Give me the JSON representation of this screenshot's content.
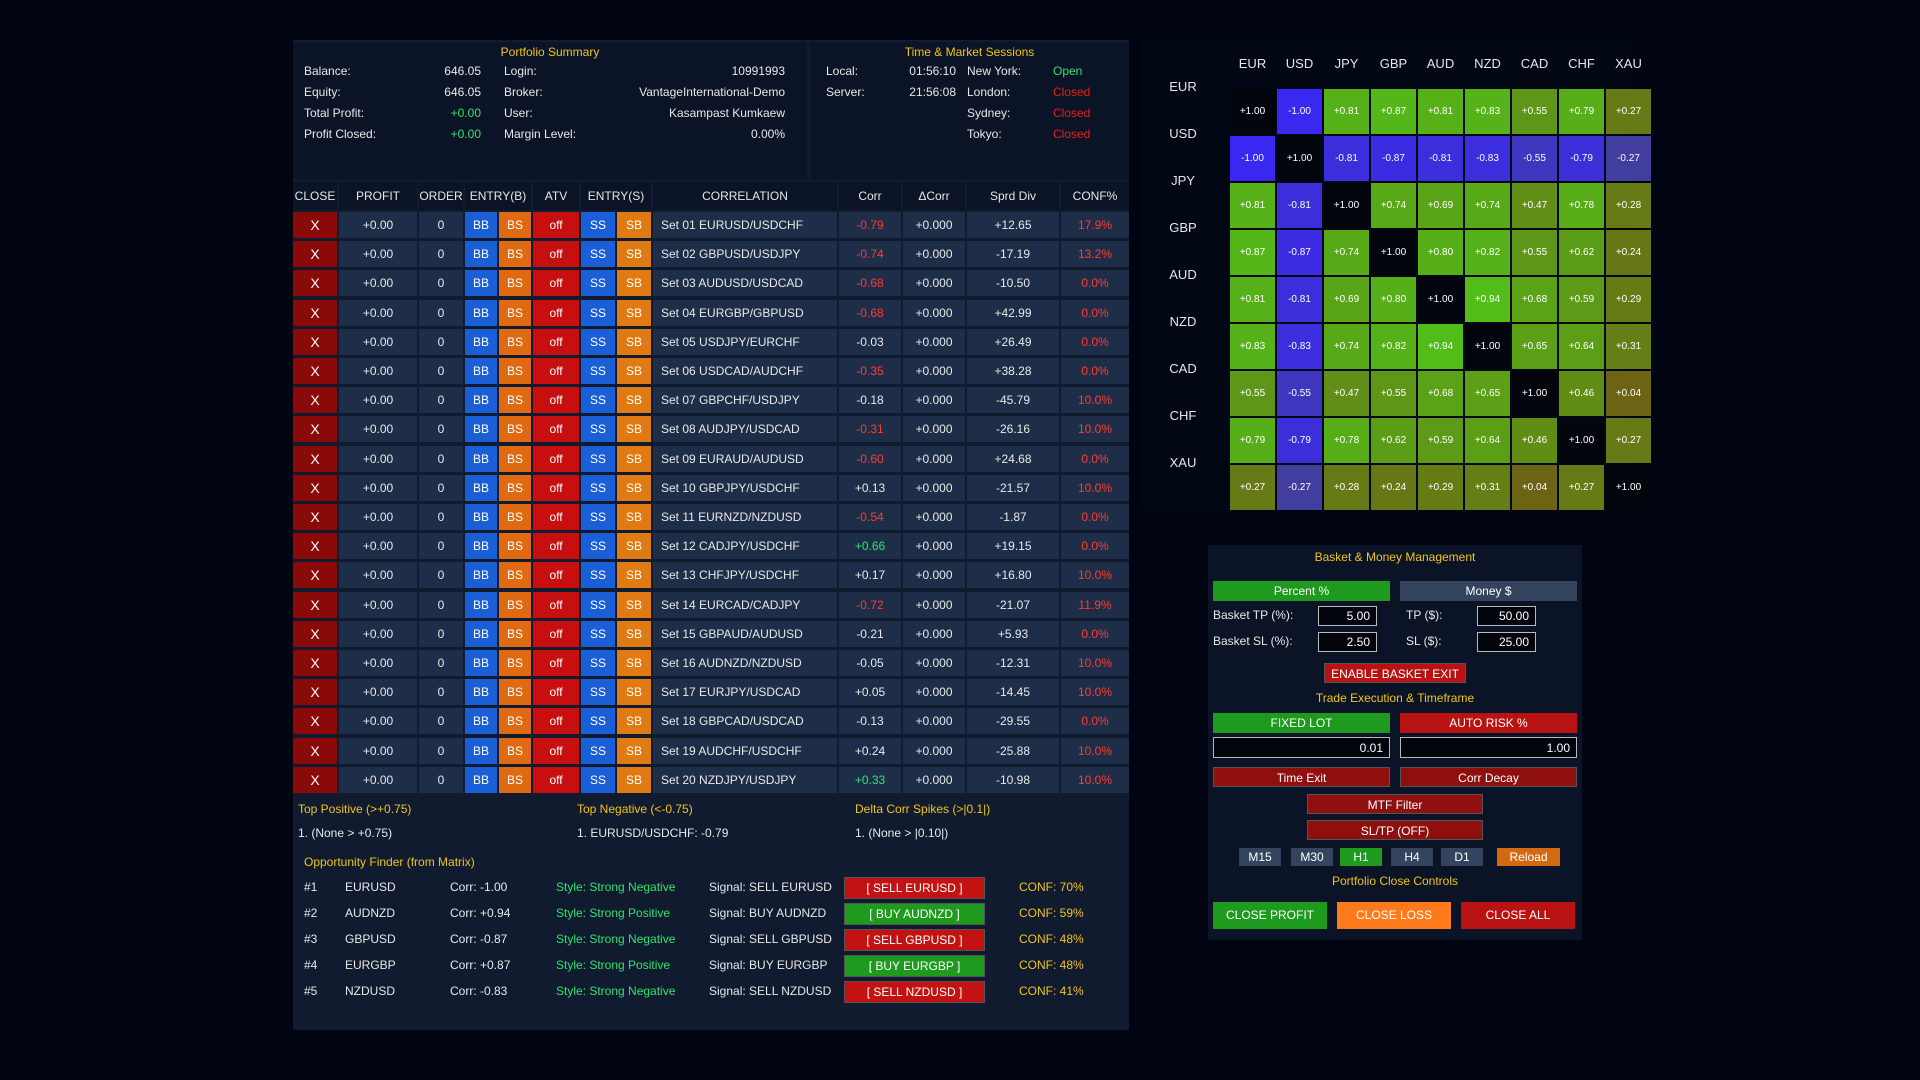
{
  "portfolio": {
    "title": "Portfolio Summary",
    "balance_label": "Balance:",
    "balance": "646.05",
    "equity_label": "Equity:",
    "equity": "646.05",
    "total_profit_label": "Total Profit:",
    "total_profit": "+0.00",
    "profit_closed_label": "Profit Closed:",
    "profit_closed": "+0.00",
    "login_label": "Login:",
    "login": "10991993",
    "broker_label": "Broker:",
    "broker": "VantageInternational-Demo",
    "user_label": "User:",
    "user": "Kasampast Kumkaew",
    "margin_label": "Margin Level:",
    "margin": "0.00%"
  },
  "sessions": {
    "title": "Time & Market Sessions",
    "local_label": "Local:",
    "local": "01:56:10",
    "server_label": "Server:",
    "server": "21:56:08",
    "markets": [
      {
        "name": "New York:",
        "status": "Open",
        "color": "#2ee36b"
      },
      {
        "name": "London:",
        "status": "Closed",
        "color": "#e2201a"
      },
      {
        "name": "Sydney:",
        "status": "Closed",
        "color": "#e2201a"
      },
      {
        "name": "Tokyo:",
        "status": "Closed",
        "color": "#e2201a"
      }
    ]
  },
  "table": {
    "headers": [
      "CLOSE",
      "PROFIT",
      "ORDER",
      "ENTRY(B)",
      "ATV",
      "ENTRY(S)",
      "CORRELATION",
      "Corr",
      "ΔCorr",
      "Sprd Div",
      "CONF%"
    ],
    "buttons": {
      "close": "X",
      "bb": "BB",
      "bs": "BS",
      "off": "off",
      "ss": "SS",
      "sb": "SB"
    },
    "rows": [
      {
        "profit": "+0.00",
        "order": "0",
        "name": "Set 01 EURUSD/USDCHF",
        "corr": "-0.79",
        "corr_color": "#ff3b30",
        "dcorr": "+0.000",
        "sprd": "+12.65",
        "conf": "17.9%"
      },
      {
        "profit": "+0.00",
        "order": "0",
        "name": "Set 02 GBPUSD/USDJPY",
        "corr": "-0.74",
        "corr_color": "#ff3b30",
        "dcorr": "+0.000",
        "sprd": "-17.19",
        "conf": "13.2%"
      },
      {
        "profit": "+0.00",
        "order": "0",
        "name": "Set 03 AUDUSD/USDCAD",
        "corr": "-0.68",
        "corr_color": "#ff3b30",
        "dcorr": "+0.000",
        "sprd": "-10.50",
        "conf": "0.0%"
      },
      {
        "profit": "+0.00",
        "order": "0",
        "name": "Set 04 EURGBP/GBPUSD",
        "corr": "-0.68",
        "corr_color": "#ff3b30",
        "dcorr": "+0.000",
        "sprd": "+42.99",
        "conf": "0.0%"
      },
      {
        "profit": "+0.00",
        "order": "0",
        "name": "Set 05 USDJPY/EURCHF",
        "corr": "-0.03",
        "corr_color": "#e8e8e8",
        "dcorr": "+0.000",
        "sprd": "+26.49",
        "conf": "0.0%"
      },
      {
        "profit": "+0.00",
        "order": "0",
        "name": "Set 06 USDCAD/AUDCHF",
        "corr": "-0.35",
        "corr_color": "#ff3b30",
        "dcorr": "+0.000",
        "sprd": "+38.28",
        "conf": "0.0%"
      },
      {
        "profit": "+0.00",
        "order": "0",
        "name": "Set 07 GBPCHF/USDJPY",
        "corr": "-0.18",
        "corr_color": "#e8e8e8",
        "dcorr": "+0.000",
        "sprd": "-45.79",
        "conf": "10.0%"
      },
      {
        "profit": "+0.00",
        "order": "0",
        "name": "Set 08 AUDJPY/USDCAD",
        "corr": "-0.31",
        "corr_color": "#ff3b30",
        "dcorr": "+0.000",
        "sprd": "-26.16",
        "conf": "10.0%"
      },
      {
        "profit": "+0.00",
        "order": "0",
        "name": "Set 09 EURAUD/AUDUSD",
        "corr": "-0.60",
        "corr_color": "#ff3b30",
        "dcorr": "+0.000",
        "sprd": "+24.68",
        "conf": "0.0%"
      },
      {
        "profit": "+0.00",
        "order": "0",
        "name": "Set 10 GBPJPY/USDCHF",
        "corr": "+0.13",
        "corr_color": "#e8e8e8",
        "dcorr": "+0.000",
        "sprd": "-21.57",
        "conf": "10.0%"
      },
      {
        "profit": "+0.00",
        "order": "0",
        "name": "Set 11 EURNZD/NZDUSD",
        "corr": "-0.54",
        "corr_color": "#ff3b30",
        "dcorr": "+0.000",
        "sprd": "-1.87",
        "conf": "0.0%"
      },
      {
        "profit": "+0.00",
        "order": "0",
        "name": "Set 12 CADJPY/USDCHF",
        "corr": "+0.66",
        "corr_color": "#2ee36b",
        "dcorr": "+0.000",
        "sprd": "+19.15",
        "conf": "0.0%"
      },
      {
        "profit": "+0.00",
        "order": "0",
        "name": "Set 13 CHFJPY/USDCHF",
        "corr": "+0.17",
        "corr_color": "#e8e8e8",
        "dcorr": "+0.000",
        "sprd": "+16.80",
        "conf": "10.0%"
      },
      {
        "profit": "+0.00",
        "order": "0",
        "name": "Set 14 EURCAD/CADJPY",
        "corr": "-0.72",
        "corr_color": "#ff3b30",
        "dcorr": "+0.000",
        "sprd": "-21.07",
        "conf": "11.9%"
      },
      {
        "profit": "+0.00",
        "order": "0",
        "name": "Set 15 GBPAUD/AUDUSD",
        "corr": "-0.21",
        "corr_color": "#e8e8e8",
        "dcorr": "+0.000",
        "sprd": "+5.93",
        "conf": "0.0%"
      },
      {
        "profit": "+0.00",
        "order": "0",
        "name": "Set 16 AUDNZD/NZDUSD",
        "corr": "-0.05",
        "corr_color": "#e8e8e8",
        "dcorr": "+0.000",
        "sprd": "-12.31",
        "conf": "10.0%"
      },
      {
        "profit": "+0.00",
        "order": "0",
        "name": "Set 17 EURJPY/USDCAD",
        "corr": "+0.05",
        "corr_color": "#e8e8e8",
        "dcorr": "+0.000",
        "sprd": "-14.45",
        "conf": "10.0%"
      },
      {
        "profit": "+0.00",
        "order": "0",
        "name": "Set 18 GBPCAD/USDCAD",
        "corr": "-0.13",
        "corr_color": "#e8e8e8",
        "dcorr": "+0.000",
        "sprd": "-29.55",
        "conf": "0.0%"
      },
      {
        "profit": "+0.00",
        "order": "0",
        "name": "Set 19 AUDCHF/USDCHF",
        "corr": "+0.24",
        "corr_color": "#e8e8e8",
        "dcorr": "+0.000",
        "sprd": "-25.88",
        "conf": "10.0%"
      },
      {
        "profit": "+0.00",
        "order": "0",
        "name": "Set 20 NZDJPY/USDJPY",
        "corr": "+0.33",
        "corr_color": "#2ee36b",
        "dcorr": "+0.000",
        "sprd": "-10.98",
        "conf": "10.0%"
      }
    ]
  },
  "spikes": {
    "top_positive_title": "Top Positive (>+0.75)",
    "top_positive": "1. (None > +0.75)",
    "top_negative_title": "Top Negative (<-0.75)",
    "top_negative": "1. EURUSD/USDCHF: -0.79",
    "delta_title": "Delta Corr Spikes (>|0.1|)",
    "delta": "1. (None > |0.10|)"
  },
  "opportunity": {
    "title": "Opportunity Finder (from Matrix)",
    "rows": [
      {
        "rank": "#1",
        "pair": "EURUSD",
        "corr": "Corr: -1.00",
        "style": "Style: Strong Negative",
        "signal": "Signal: SELL EURUSD",
        "btn": "[ SELL EURUSD ]",
        "type": "sell",
        "conf": "CONF: 70%"
      },
      {
        "rank": "#2",
        "pair": "AUDNZD",
        "corr": "Corr: +0.94",
        "style": "Style: Strong Positive",
        "signal": "Signal: BUY AUDNZD",
        "btn": "[ BUY AUDNZD ]",
        "type": "buy",
        "conf": "CONF: 59%"
      },
      {
        "rank": "#3",
        "pair": "GBPUSD",
        "corr": "Corr: -0.87",
        "style": "Style: Strong Negative",
        "signal": "Signal: SELL GBPUSD",
        "btn": "[ SELL GBPUSD ]",
        "type": "sell",
        "conf": "CONF: 48%"
      },
      {
        "rank": "#4",
        "pair": "EURGBP",
        "corr": "Corr: +0.87",
        "style": "Style: Strong Positive",
        "signal": "Signal: BUY EURGBP",
        "btn": "[ BUY EURGBP ]",
        "type": "buy",
        "conf": "CONF: 48%"
      },
      {
        "rank": "#5",
        "pair": "NZDUSD",
        "corr": "Corr: -0.83",
        "style": "Style: Strong Negative",
        "signal": "Signal: SELL NZDUSD",
        "btn": "[ SELL NZDUSD ]",
        "type": "sell",
        "conf": "CONF: 41%"
      }
    ]
  },
  "matrix": {
    "currencies": [
      "EUR",
      "USD",
      "JPY",
      "GBP",
      "AUD",
      "NZD",
      "CAD",
      "CHF",
      "XAU"
    ],
    "values": [
      [
        "+1.00",
        "-1.00",
        "+0.81",
        "+0.87",
        "+0.81",
        "+0.83",
        "+0.55",
        "+0.79",
        "+0.27"
      ],
      [
        "-1.00",
        "+1.00",
        "-0.81",
        "-0.87",
        "-0.81",
        "-0.83",
        "-0.55",
        "-0.79",
        "-0.27"
      ],
      [
        "+0.81",
        "-0.81",
        "+1.00",
        "+0.74",
        "+0.69",
        "+0.74",
        "+0.47",
        "+0.78",
        "+0.28"
      ],
      [
        "+0.87",
        "-0.87",
        "+0.74",
        "+1.00",
        "+0.80",
        "+0.82",
        "+0.55",
        "+0.62",
        "+0.24"
      ],
      [
        "+0.81",
        "-0.81",
        "+0.69",
        "+0.80",
        "+1.00",
        "+0.94",
        "+0.68",
        "+0.59",
        "+0.29"
      ],
      [
        "+0.83",
        "-0.83",
        "+0.74",
        "+0.82",
        "+0.94",
        "+1.00",
        "+0.65",
        "+0.64",
        "+0.31"
      ],
      [
        "+0.55",
        "-0.55",
        "+0.47",
        "+0.55",
        "+0.68",
        "+0.65",
        "+1.00",
        "+0.46",
        "+0.04"
      ],
      [
        "+0.79",
        "-0.79",
        "+0.78",
        "+0.62",
        "+0.59",
        "+0.64",
        "+0.46",
        "+1.00",
        "+0.27"
      ],
      [
        "+0.27",
        "-0.27",
        "+0.28",
        "+0.24",
        "+0.29",
        "+0.31",
        "+0.04",
        "+0.27",
        "+1.00"
      ]
    ]
  },
  "management": {
    "basket_title": "Basket & Money Management",
    "percent_btn": "Percent %",
    "money_btn": "Money $",
    "basket_tp_label": "Basket TP (%):",
    "basket_tp": "5.00",
    "tp_label": "TP ($):",
    "tp": "50.00",
    "basket_sl_label": "Basket SL (%):",
    "basket_sl": "2.50",
    "sl_label": "SL ($):",
    "sl": "25.00",
    "enable_basket_exit": "ENABLE BASKET EXIT",
    "trade_title": "Trade Execution & Timeframe",
    "fixed_lot": "FIXED LOT",
    "auto_risk": "AUTO RISK %",
    "lot_value": "0.01",
    "risk_value": "1.00",
    "time_exit": "Time Exit",
    "corr_decay": "Corr Decay",
    "mtf_filter": "MTF Filter",
    "sltp": "SL/TP (OFF)",
    "timeframes": [
      "M15",
      "M30",
      "H1",
      "H4",
      "D1"
    ],
    "active_tf": "H1",
    "reload": "Reload",
    "close_title": "Portfolio Close Controls",
    "close_profit": "CLOSE PROFIT",
    "close_loss": "CLOSE LOSS",
    "close_all": "CLOSE ALL"
  }
}
